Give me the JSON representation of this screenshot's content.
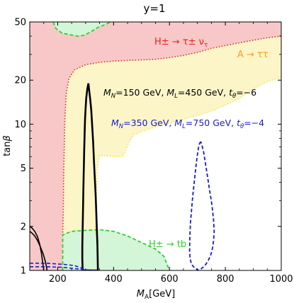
{
  "chart_data": {
    "type": "line",
    "title": "y=1",
    "xlabel": "M_A[GeV]",
    "ylabel": "tanβ",
    "xlim": [
      100,
      1000
    ],
    "ylim": [
      1,
      50
    ],
    "yscale": "log",
    "grid": false,
    "x_ticks": [
      200,
      400,
      600,
      800,
      1000
    ],
    "x_tick_labels": [
      "200",
      "400",
      "600",
      "800",
      "1000"
    ],
    "y_ticks": [
      1,
      2,
      5,
      10,
      20,
      50
    ],
    "y_tick_labels": [
      "1",
      "2",
      "5",
      "10",
      "20",
      "50"
    ],
    "colors": {
      "red_fill": "#f8c8c8",
      "red_line": "#e8231f",
      "yellow_fill": "#fbf5c8",
      "yellow_line": "#f3e43a",
      "green_fill": "#d3f5d8",
      "green_line": "#2fd02f",
      "black_line": "#000000",
      "blue_line": "#1a1ad8"
    },
    "regions": [
      {
        "label": "H± → τ± ν_τ",
        "color": "#e8231f",
        "fill": "#f8c8c8",
        "style": "dotted",
        "boundary": [
          [
            1000,
            40
          ],
          [
            950,
            39
          ],
          [
            900,
            37.5
          ],
          [
            850,
            36
          ],
          [
            800,
            34.5
          ],
          [
            750,
            33
          ],
          [
            700,
            31
          ],
          [
            650,
            29.5
          ],
          [
            600,
            28.5
          ],
          [
            550,
            27.8
          ],
          [
            500,
            27.5
          ],
          [
            450,
            27.3
          ],
          [
            400,
            27
          ],
          [
            350,
            26.5
          ],
          [
            300,
            25.5
          ],
          [
            260,
            23.5
          ],
          [
            240,
            20.5
          ],
          [
            230,
            16
          ],
          [
            225,
            10
          ],
          [
            222,
            5
          ],
          [
            220,
            2.5
          ],
          [
            218,
            1.75
          ]
        ]
      },
      {
        "label": "A → ττ",
        "color": "#f3e43a",
        "fill": "#fbf5c8",
        "style": "dotted",
        "boundary": [
          [
            1000,
            21
          ],
          [
            950,
            19.5
          ],
          [
            900,
            17.5
          ],
          [
            850,
            15
          ],
          [
            800,
            13.5
          ],
          [
            750,
            12.3
          ],
          [
            700,
            11.5
          ],
          [
            650,
            10.8
          ],
          [
            600,
            10.2
          ],
          [
            550,
            9.6
          ],
          [
            500,
            8.9
          ],
          [
            470,
            8.4
          ],
          [
            450,
            7.2
          ],
          [
            440,
            6.3
          ],
          [
            430,
            6
          ],
          [
            400,
            6
          ],
          [
            370,
            6.1
          ],
          [
            350,
            6.1
          ],
          [
            345,
            5.5
          ],
          [
            340,
            4.5
          ],
          [
            338,
            3
          ],
          [
            335,
            1.75
          ]
        ]
      },
      {
        "label": "H± → tb",
        "color": "#2fd02f",
        "fill": "#d3f5d8",
        "style": "dashed",
        "boundary_bottom": [
          [
            218,
            1
          ],
          [
            218,
            1.75
          ],
          [
            250,
            1.85
          ],
          [
            300,
            1.88
          ],
          [
            350,
            1.9
          ],
          [
            400,
            1.85
          ],
          [
            450,
            1.72
          ],
          [
            500,
            1.55
          ],
          [
            550,
            1.4
          ],
          [
            580,
            1.25
          ],
          [
            600,
            1.0
          ]
        ],
        "boundary_top": [
          [
            185,
            50
          ],
          [
            190,
            46
          ],
          [
            200,
            44
          ],
          [
            215,
            42
          ],
          [
            240,
            41
          ],
          [
            270,
            40
          ],
          [
            295,
            40.5
          ],
          [
            320,
            43
          ],
          [
            345,
            46
          ],
          [
            370,
            48
          ],
          [
            390,
            50
          ]
        ]
      }
    ],
    "series": [
      {
        "name": "M_N=150 GeV, M_L=450 GeV, t_θ=−6",
        "color": "#000000",
        "style": "solid",
        "x": [
          310,
          306,
          302,
          300,
          298,
          297,
          296,
          295,
          294,
          293,
          292,
          291,
          290,
          289,
          288,
          288,
          289,
          290,
          292,
          295,
          300,
          306,
          311,
          318,
          325,
          330,
          335,
          340,
          344,
          343,
          342,
          340,
          338,
          336,
          333,
          330,
          327,
          323,
          320,
          316,
          312,
          310
        ],
        "y": [
          19,
          17.5,
          15,
          13,
          11,
          9.5,
          8,
          6.8,
          5.5,
          4.5,
          3.6,
          2.8,
          2.2,
          1.8,
          1.45,
          1.2,
          1.05,
          1.0,
          1.0,
          1.0,
          1.0,
          1.0,
          1.0,
          1.0,
          1.0,
          1.0,
          1.0,
          1.0,
          1.0,
          1.2,
          1.5,
          1.9,
          2.5,
          3.2,
          4.2,
          5.5,
          7.5,
          10,
          12.5,
          15,
          17.5,
          19
        ]
      },
      {
        "name": "Black low-mass band",
        "color": "#000000",
        "style": "solid",
        "x": [
          100,
          108,
          118,
          128,
          136,
          142,
          146,
          149,
          150,
          100,
          108,
          118,
          128,
          138,
          148,
          156,
          160,
          162
        ],
        "y": [
          2.0,
          1.95,
          1.85,
          1.7,
          1.5,
          1.3,
          1.15,
          1.05,
          1.0,
          1.85,
          1.8,
          1.72,
          1.6,
          1.45,
          1.3,
          1.15,
          1.05,
          1.0
        ]
      },
      {
        "name": "M_N=350 GeV, M_L=750 GeV, t_θ=−4",
        "color": "#1a1ad8",
        "style": "dashed",
        "x": [
          712,
          708,
          704,
          700,
          696,
          692,
          688,
          683,
          679,
          675,
          673,
          672,
          674,
          679,
          688,
          697,
          705,
          712,
          720,
          730,
          740,
          748,
          754,
          758,
          760,
          758,
          752,
          744,
          736,
          728,
          722,
          716,
          712
        ],
        "y": [
          7.6,
          7.4,
          6.9,
          6.2,
          5.4,
          4.6,
          3.9,
          3.2,
          2.6,
          2.1,
          1.7,
          1.35,
          1.2,
          1.1,
          1.05,
          1.02,
          1.0,
          1.02,
          1.05,
          1.1,
          1.18,
          1.28,
          1.42,
          1.6,
          1.85,
          2.2,
          2.8,
          3.5,
          4.4,
          5.5,
          6.5,
          7.2,
          7.6
        ]
      },
      {
        "name": "Blue low-mass band",
        "color": "#1a1ad8",
        "style": "dashed",
        "x": [
          100,
          160,
          220,
          260,
          290,
          300,
          100,
          160,
          220,
          260,
          300,
          340
        ],
        "y": [
          1.12,
          1.12,
          1.1,
          1.08,
          1.03,
          1.0,
          1.06,
          1.06,
          1.05,
          1.03,
          1.01,
          1.0
        ]
      }
    ],
    "annotations": [
      {
        "text": "H± → τ± ν",
        "sub": "τ",
        "color": "#e8231f"
      },
      {
        "text": "A → ττ",
        "sub": "",
        "color": "#f0a020"
      },
      {
        "text": "M_N=150 GeV, M_L=450 GeV, t_θ=−6",
        "sub": "",
        "color": "#000000"
      },
      {
        "text": "M_N=350 GeV, M_L=750 GeV, t_θ=−4",
        "sub": "",
        "color": "#1a1ad8"
      },
      {
        "text": "H± → tb",
        "sub": "",
        "color": "#2fd02f"
      }
    ]
  }
}
